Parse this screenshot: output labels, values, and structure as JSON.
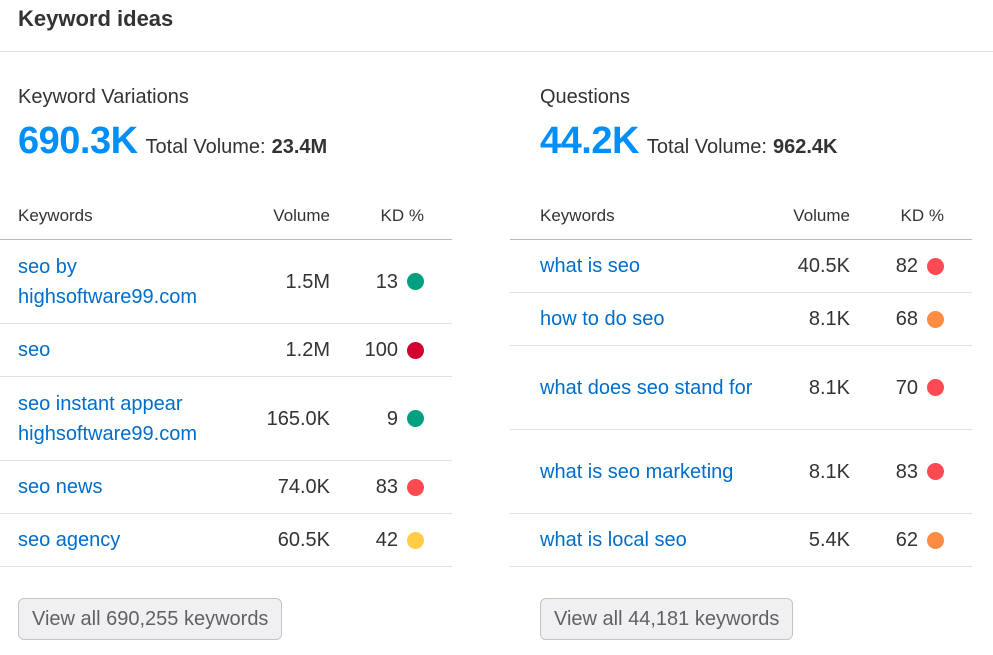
{
  "header": {
    "title": "Keyword ideas"
  },
  "columns": {
    "keywords": "Keywords",
    "volume": "Volume",
    "kd": "KD %"
  },
  "total_volume_label": "Total Volume:",
  "colors": {
    "accent": "#008ff8",
    "link": "#006dca",
    "kd_green": "#009f81",
    "kd_darkred": "#d1002f",
    "kd_red": "#ff4953",
    "kd_orange": "#ff8c43",
    "kd_yellow": "#ffcd44"
  },
  "variations": {
    "title": "Keyword Variations",
    "count": "690.3K",
    "total_volume": "23.4M",
    "rows": [
      {
        "keyword": "seo by highsoftware99.com",
        "volume": "1.5M",
        "kd": "13",
        "kd_level": "green"
      },
      {
        "keyword": "seo",
        "volume": "1.2M",
        "kd": "100",
        "kd_level": "darkred"
      },
      {
        "keyword": "seo instant appear highsoftware99.com",
        "volume": "165.0K",
        "kd": "9",
        "kd_level": "green"
      },
      {
        "keyword": "seo news",
        "volume": "74.0K",
        "kd": "83",
        "kd_level": "red"
      },
      {
        "keyword": "seo agency",
        "volume": "60.5K",
        "kd": "42",
        "kd_level": "yellow"
      }
    ],
    "view_all_label": "View all 690,255 keywords"
  },
  "questions": {
    "title": "Questions",
    "count": "44.2K",
    "total_volume": "962.4K",
    "rows": [
      {
        "keyword": "what is seo",
        "volume": "40.5K",
        "kd": "82",
        "kd_level": "red"
      },
      {
        "keyword": "how to do seo",
        "volume": "8.1K",
        "kd": "68",
        "kd_level": "orange"
      },
      {
        "keyword": "what does seo stand for",
        "volume": "8.1K",
        "kd": "70",
        "kd_level": "red"
      },
      {
        "keyword": "what is seo marketing",
        "volume": "8.1K",
        "kd": "83",
        "kd_level": "red"
      },
      {
        "keyword": "what is local seo",
        "volume": "5.4K",
        "kd": "62",
        "kd_level": "orange"
      }
    ],
    "view_all_label": "View all 44,181 keywords"
  }
}
